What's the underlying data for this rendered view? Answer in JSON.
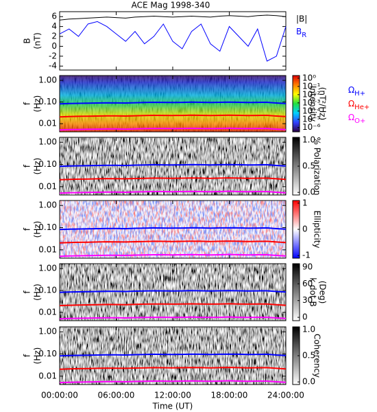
{
  "chart_data": [
    {
      "type": "line",
      "title": "ACE Mag 1998-340",
      "ylabel": [
        "B",
        "(nT)"
      ],
      "x": [
        0,
        1,
        2,
        3,
        4,
        5,
        6,
        7,
        8,
        9,
        10,
        11,
        12,
        13,
        14,
        15,
        16,
        17,
        18,
        19,
        20,
        21,
        22,
        23,
        24
      ],
      "xlim": [
        0,
        24
      ],
      "ylim": [
        -4.8,
        7
      ],
      "yticks": [
        -4,
        -2,
        0,
        2,
        4,
        6
      ],
      "series": [
        {
          "name": "|B|",
          "color": "#000000",
          "values": [
            5.3,
            5.5,
            5.6,
            5.7,
            5.8,
            5.9,
            5.8,
            5.7,
            5.9,
            6.0,
            6.1,
            6.0,
            5.9,
            6.0,
            6.1,
            6.0,
            5.9,
            6.1,
            6.2,
            6.1,
            6.0,
            6.2,
            6.3,
            6.2,
            6.0
          ]
        },
        {
          "name": "BR",
          "color": "#0000ff",
          "values": [
            2.5,
            3.5,
            2.0,
            4.5,
            5.0,
            4.0,
            2.5,
            1.0,
            3.0,
            0.5,
            2.0,
            4.5,
            1.0,
            -0.5,
            3.0,
            4.5,
            0.5,
            -1.0,
            4.0,
            2.0,
            0.0,
            3.5,
            -3.0,
            -2.0,
            4.0
          ]
        }
      ]
    },
    {
      "type": "spectrogram",
      "ylabel": [
        "f",
        "(Hz)"
      ],
      "ylog": true,
      "ylim": [
        0.0042,
        1.67
      ],
      "yticks": [
        {
          "value": 1,
          "label": "1.00"
        },
        {
          "value": 0.1,
          "label": "0.10"
        },
        {
          "value": 0.01,
          "label": "0.01"
        }
      ],
      "colormap": [
        "#2a0040",
        "#3040ff",
        "#00d0ff",
        "#20e040",
        "#ffff00",
        "#ff8000",
        "#e00000"
      ],
      "clog": true,
      "clim": [
        3e-07,
        2.1
      ],
      "cticks": [
        {
          "value": 1,
          "label": "10⁰"
        },
        {
          "value": 0.1,
          "label": "10⁻¹"
        },
        {
          "value": 0.01,
          "label": "10⁻²"
        },
        {
          "value": 0.001,
          "label": "10⁻³"
        },
        {
          "value": 0.0001,
          "label": "10⁻⁴"
        },
        {
          "value": 1e-05,
          "label": "10⁻⁵"
        },
        {
          "value": 1e-06,
          "label": "10⁻⁶"
        }
      ],
      "colorbar_label": [
        "Intensity",
        "(nT²/Hz)"
      ],
      "x": [
        0,
        1,
        2,
        3,
        4,
        5,
        6,
        7,
        8,
        9,
        10,
        11,
        12,
        13,
        14,
        15,
        16,
        17,
        18,
        19,
        20,
        21,
        22,
        23,
        24
      ],
      "xlim": [
        0,
        24
      ],
      "series": [
        {
          "name": "ΩH+",
          "color": "#0000ff",
          "values": [
            0.082,
            0.085,
            0.087,
            0.088,
            0.09,
            0.092,
            0.091,
            0.09,
            0.093,
            0.095,
            0.097,
            0.096,
            0.095,
            0.096,
            0.098,
            0.097,
            0.095,
            0.097,
            0.099,
            0.097,
            0.095,
            0.096,
            0.097,
            0.09,
            0.085
          ]
        },
        {
          "name": "ΩHe+",
          "color": "#ff0000",
          "values": [
            0.0205,
            0.0212,
            0.0218,
            0.022,
            0.0225,
            0.023,
            0.0228,
            0.0225,
            0.0232,
            0.0238,
            0.0242,
            0.024,
            0.0238,
            0.024,
            0.0245,
            0.0242,
            0.0238,
            0.0242,
            0.0248,
            0.0242,
            0.0238,
            0.024,
            0.0242,
            0.0225,
            0.0212
          ]
        },
        {
          "name": "ΩO+",
          "color": "#ff00ff",
          "values": [
            0.0051,
            0.0053,
            0.0054,
            0.0055,
            0.0056,
            0.0057,
            0.0057,
            0.0056,
            0.0058,
            0.0059,
            0.006,
            0.006,
            0.0059,
            0.006,
            0.0061,
            0.006,
            0.0059,
            0.006,
            0.0062,
            0.006,
            0.0059,
            0.006,
            0.006,
            0.0056,
            0.0053
          ]
        }
      ]
    },
    {
      "type": "spectrogram",
      "ylabel": [
        "f",
        "(Hz)"
      ],
      "ylog": true,
      "ylim": [
        0.0042,
        1.67
      ],
      "yticks": [
        {
          "value": 1,
          "label": "1.00"
        },
        {
          "value": 0.1,
          "label": "0.10"
        },
        {
          "value": 0.01,
          "label": "0.01"
        }
      ],
      "colormap": [
        "#ffffff",
        "#000000"
      ],
      "clog": false,
      "clim": [
        -0.05,
        1.05
      ],
      "cticks": [
        {
          "value": 0,
          "label": "0.0"
        },
        {
          "value": 0.5,
          "label": "0.5"
        },
        {
          "value": 1,
          "label": "1.0"
        }
      ],
      "colorbar_label": [
        "% Polarization"
      ],
      "x": [
        0,
        1,
        2,
        3,
        4,
        5,
        6,
        7,
        8,
        9,
        10,
        11,
        12,
        13,
        14,
        15,
        16,
        17,
        18,
        19,
        20,
        21,
        22,
        23,
        24
      ],
      "xlim": [
        0,
        24
      ],
      "series": [
        {
          "color": "#0000ff",
          "values": [
            0.082,
            0.085,
            0.087,
            0.088,
            0.09,
            0.092,
            0.091,
            0.09,
            0.093,
            0.095,
            0.097,
            0.096,
            0.095,
            0.096,
            0.098,
            0.097,
            0.095,
            0.097,
            0.099,
            0.097,
            0.095,
            0.096,
            0.097,
            0.09,
            0.085
          ]
        },
        {
          "color": "#ff0000",
          "values": [
            0.0205,
            0.0212,
            0.0218,
            0.022,
            0.0225,
            0.023,
            0.0228,
            0.0225,
            0.0232,
            0.0238,
            0.0242,
            0.024,
            0.0238,
            0.024,
            0.0245,
            0.0242,
            0.0238,
            0.0242,
            0.0248,
            0.0242,
            0.0238,
            0.024,
            0.0242,
            0.0225,
            0.0212
          ]
        },
        {
          "color": "#ff00ff",
          "values": [
            0.0051,
            0.0053,
            0.0054,
            0.0055,
            0.0056,
            0.0057,
            0.0057,
            0.0056,
            0.0058,
            0.0059,
            0.006,
            0.006,
            0.0059,
            0.006,
            0.0061,
            0.006,
            0.0059,
            0.006,
            0.0062,
            0.006,
            0.0059,
            0.006,
            0.006,
            0.0056,
            0.0053
          ]
        }
      ]
    },
    {
      "type": "spectrogram",
      "ylabel": [
        "f",
        "(Hz)"
      ],
      "ylog": true,
      "ylim": [
        0.0042,
        1.67
      ],
      "yticks": [
        {
          "value": 1,
          "label": "1.00"
        },
        {
          "value": 0.1,
          "label": "0.10"
        },
        {
          "value": 0.01,
          "label": "0.01"
        }
      ],
      "colormap": [
        "#0000ff",
        "#ffffff",
        "#ff0000"
      ],
      "clog": false,
      "clim": [
        -1.1,
        1.1
      ],
      "cticks": [
        -1,
        0,
        1
      ],
      "colorbar_label": [
        "Ellipticity"
      ],
      "x": [
        0,
        1,
        2,
        3,
        4,
        5,
        6,
        7,
        8,
        9,
        10,
        11,
        12,
        13,
        14,
        15,
        16,
        17,
        18,
        19,
        20,
        21,
        22,
        23,
        24
      ],
      "xlim": [
        0,
        24
      ],
      "series": [
        {
          "color": "#0000ff",
          "values": [
            0.082,
            0.085,
            0.087,
            0.088,
            0.09,
            0.092,
            0.091,
            0.09,
            0.093,
            0.095,
            0.097,
            0.096,
            0.095,
            0.096,
            0.098,
            0.097,
            0.095,
            0.097,
            0.099,
            0.097,
            0.095,
            0.096,
            0.097,
            0.09,
            0.085
          ]
        },
        {
          "color": "#ff0000",
          "values": [
            0.0205,
            0.0212,
            0.0218,
            0.022,
            0.0225,
            0.023,
            0.0228,
            0.0225,
            0.0232,
            0.0238,
            0.0242,
            0.024,
            0.0238,
            0.024,
            0.0245,
            0.0242,
            0.0238,
            0.0242,
            0.0248,
            0.0242,
            0.0238,
            0.024,
            0.0242,
            0.0225,
            0.0212
          ]
        },
        {
          "color": "#ff00ff",
          "values": [
            0.0051,
            0.0053,
            0.0054,
            0.0055,
            0.0056,
            0.0057,
            0.0057,
            0.0056,
            0.0058,
            0.0059,
            0.006,
            0.006,
            0.0059,
            0.006,
            0.0061,
            0.006,
            0.0059,
            0.006,
            0.0062,
            0.006,
            0.0059,
            0.006,
            0.006,
            0.0056,
            0.0053
          ]
        }
      ]
    },
    {
      "type": "spectrogram",
      "ylabel": [
        "f",
        "(Hz)"
      ],
      "ylog": true,
      "ylim": [
        0.0042,
        1.67
      ],
      "yticks": [
        {
          "value": 1,
          "label": "1.00"
        },
        {
          "value": 0.1,
          "label": "0.10"
        },
        {
          "value": 0.01,
          "label": "0.01"
        }
      ],
      "colormap": [
        "#ffffff",
        "#000000"
      ],
      "clog": false,
      "clim": [
        -6,
        96
      ],
      "cticks": [
        0,
        30,
        60,
        90
      ],
      "colorbar_label": [
        "k dot B",
        "(Deg)"
      ],
      "x": [
        0,
        1,
        2,
        3,
        4,
        5,
        6,
        7,
        8,
        9,
        10,
        11,
        12,
        13,
        14,
        15,
        16,
        17,
        18,
        19,
        20,
        21,
        22,
        23,
        24
      ],
      "xlim": [
        0,
        24
      ],
      "series": [
        {
          "color": "#0000ff",
          "values": [
            0.082,
            0.085,
            0.087,
            0.088,
            0.09,
            0.092,
            0.091,
            0.09,
            0.093,
            0.095,
            0.097,
            0.096,
            0.095,
            0.096,
            0.098,
            0.097,
            0.095,
            0.097,
            0.099,
            0.097,
            0.095,
            0.096,
            0.097,
            0.09,
            0.085
          ]
        },
        {
          "color": "#ff0000",
          "values": [
            0.0205,
            0.0212,
            0.0218,
            0.022,
            0.0225,
            0.023,
            0.0228,
            0.0225,
            0.0232,
            0.0238,
            0.0242,
            0.024,
            0.0238,
            0.024,
            0.0245,
            0.0242,
            0.0238,
            0.0242,
            0.0248,
            0.0242,
            0.0238,
            0.024,
            0.0242,
            0.0225,
            0.0212
          ]
        },
        {
          "color": "#ff00ff",
          "values": [
            0.0051,
            0.0053,
            0.0054,
            0.0055,
            0.0056,
            0.0057,
            0.0057,
            0.0056,
            0.0058,
            0.0059,
            0.006,
            0.006,
            0.0059,
            0.006,
            0.0061,
            0.006,
            0.0059,
            0.006,
            0.0062,
            0.006,
            0.0059,
            0.006,
            0.006,
            0.0056,
            0.0053
          ]
        }
      ]
    },
    {
      "type": "spectrogram",
      "ylabel": [
        "f",
        "(Hz)"
      ],
      "ylog": true,
      "ylim": [
        0.0042,
        1.67
      ],
      "yticks": [
        {
          "value": 1,
          "label": "1.00"
        },
        {
          "value": 0.1,
          "label": "0.10"
        },
        {
          "value": 0.01,
          "label": "0.01"
        }
      ],
      "colormap": [
        "#ffffff",
        "#000000"
      ],
      "clog": false,
      "clim": [
        -0.05,
        1.05
      ],
      "cticks": [
        {
          "value": 0,
          "label": "0.0"
        },
        {
          "value": 0.5,
          "label": "0.5"
        },
        {
          "value": 1,
          "label": "1.0"
        }
      ],
      "colorbar_label": [
        "Coherency"
      ],
      "x": [
        0,
        1,
        2,
        3,
        4,
        5,
        6,
        7,
        8,
        9,
        10,
        11,
        12,
        13,
        14,
        15,
        16,
        17,
        18,
        19,
        20,
        21,
        22,
        23,
        24
      ],
      "xlim": [
        0,
        24
      ],
      "xticks": [
        {
          "value": 0,
          "label": "00:00:00"
        },
        {
          "value": 6,
          "label": "06:00:00"
        },
        {
          "value": 12,
          "label": "12:00:00"
        },
        {
          "value": 18,
          "label": "18:00:00"
        },
        {
          "value": 24,
          "label": "24:00:00"
        }
      ],
      "xlabel": "Time (UT)",
      "series": [
        {
          "color": "#0000ff",
          "values": [
            0.082,
            0.085,
            0.087,
            0.088,
            0.09,
            0.092,
            0.091,
            0.09,
            0.093,
            0.095,
            0.097,
            0.096,
            0.095,
            0.096,
            0.098,
            0.097,
            0.095,
            0.097,
            0.099,
            0.097,
            0.095,
            0.096,
            0.097,
            0.09,
            0.085
          ]
        },
        {
          "color": "#ff0000",
          "values": [
            0.0205,
            0.0212,
            0.0218,
            0.022,
            0.0225,
            0.023,
            0.0228,
            0.0225,
            0.0232,
            0.0238,
            0.0242,
            0.024,
            0.0238,
            0.024,
            0.0245,
            0.0242,
            0.0238,
            0.0242,
            0.0248,
            0.0242,
            0.0238,
            0.024,
            0.0242,
            0.0225,
            0.0212
          ]
        },
        {
          "color": "#ff00ff",
          "values": [
            0.0051,
            0.0053,
            0.0054,
            0.0055,
            0.0056,
            0.0057,
            0.0057,
            0.0056,
            0.0058,
            0.0059,
            0.006,
            0.006,
            0.0059,
            0.006,
            0.0061,
            0.006,
            0.0059,
            0.006,
            0.0062,
            0.006,
            0.0059,
            0.006,
            0.006,
            0.0056,
            0.0053
          ]
        }
      ]
    }
  ]
}
